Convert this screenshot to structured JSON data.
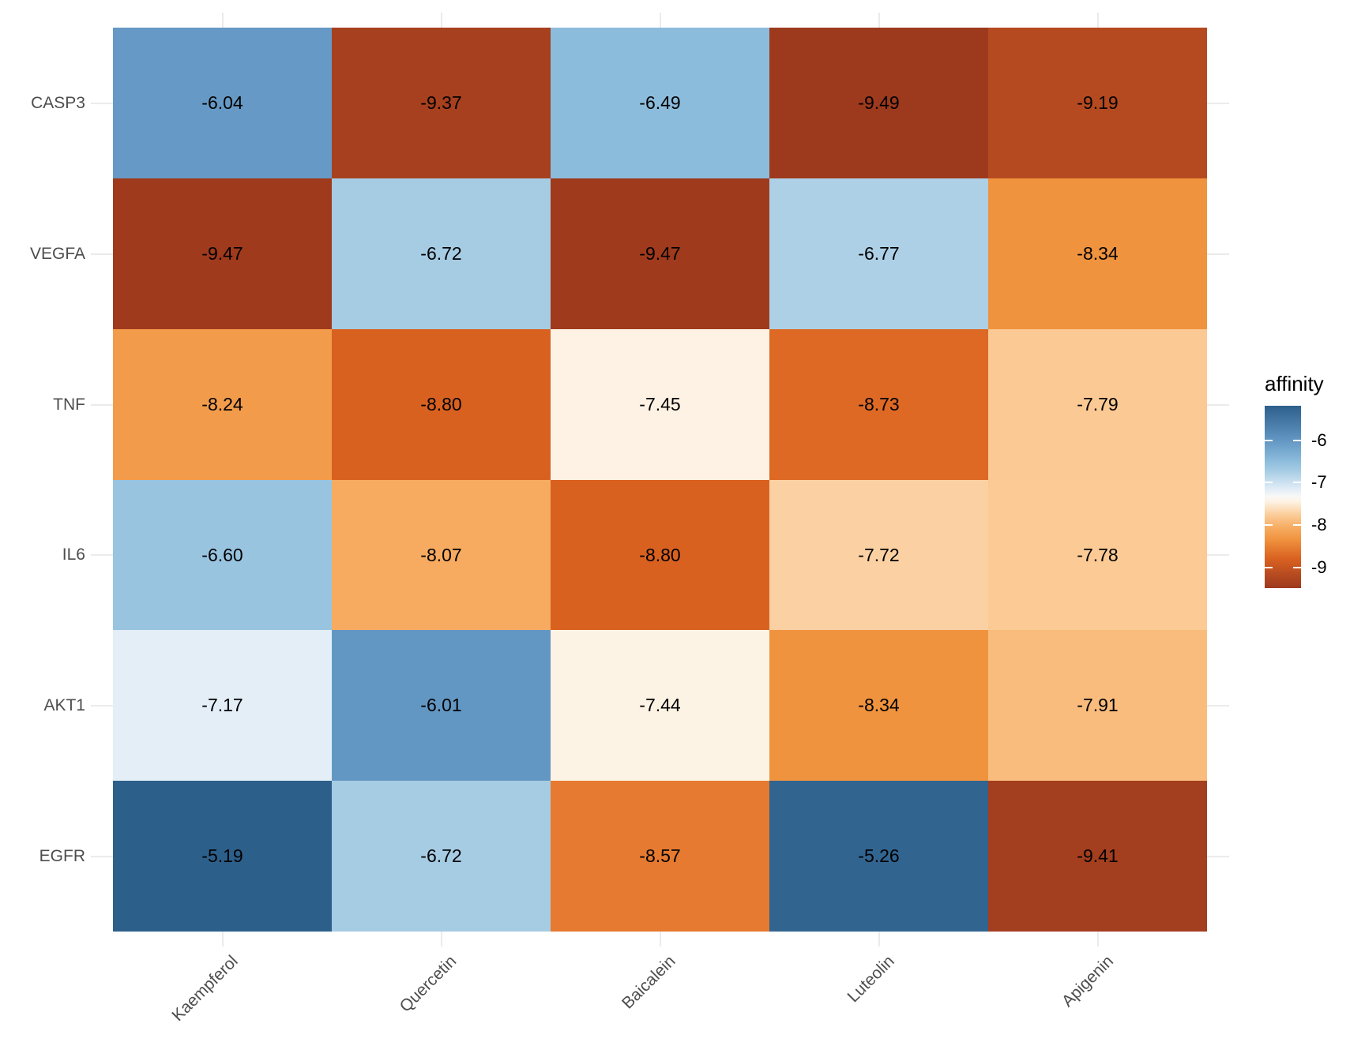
{
  "chart_data": {
    "type": "heatmap",
    "title": "",
    "rows": [
      "CASP3",
      "VEGFA",
      "TNF",
      "IL6",
      "AKT1",
      "EGFR"
    ],
    "columns": [
      "Kaempferol",
      "Quercetin",
      "Baicalein",
      "Luteolin",
      "Apigenin"
    ],
    "values": [
      [
        -6.04,
        -9.37,
        -6.49,
        -9.49,
        -9.19
      ],
      [
        -9.47,
        -6.72,
        -9.47,
        -6.77,
        -8.34
      ],
      [
        -8.24,
        -8.8,
        -7.45,
        -8.73,
        -7.79
      ],
      [
        -6.6,
        -8.07,
        -8.8,
        -7.72,
        -7.78
      ],
      [
        -7.17,
        -6.01,
        -7.44,
        -8.34,
        -7.91
      ],
      [
        -5.19,
        -6.72,
        -8.57,
        -5.26,
        -9.41
      ]
    ],
    "value_decimals": 2,
    "legend": {
      "title": "affinity",
      "tick_labels": [
        "-6",
        "-7",
        "-8",
        "-9"
      ],
      "tick_values": [
        -6,
        -7,
        -8,
        -9
      ],
      "domain_top": -5.19,
      "domain_bottom": -9.49,
      "position": "right"
    },
    "colors": {
      "background": "#ffffff",
      "grid_stub": "#ebebeb",
      "axis_label": "#4d4d4d",
      "cell_text": "#000000",
      "legend_text": "#000000",
      "scale_stops": [
        {
          "v": -5.19,
          "c": "#2d5f8b"
        },
        {
          "v": -6.01,
          "c": "#6397c3"
        },
        {
          "v": -6.49,
          "c": "#8cbcdc"
        },
        {
          "v": -6.72,
          "c": "#a6cce4"
        },
        {
          "v": -7.17,
          "c": "#e3eef7"
        },
        {
          "v": -7.34,
          "c": "#faf8f5"
        },
        {
          "v": -7.45,
          "c": "#fdf2e3"
        },
        {
          "v": -7.79,
          "c": "#fbc993"
        },
        {
          "v": -8.07,
          "c": "#f6ab60"
        },
        {
          "v": -8.34,
          "c": "#f0933f"
        },
        {
          "v": -8.8,
          "c": "#d96120"
        },
        {
          "v": -9.19,
          "c": "#b54a20"
        },
        {
          "v": -9.49,
          "c": "#9d391d"
        }
      ]
    },
    "layout_hints": {
      "grid": "stubs-outside-tiles",
      "x_label_rotation_deg": 45,
      "legend_position": "right"
    }
  }
}
